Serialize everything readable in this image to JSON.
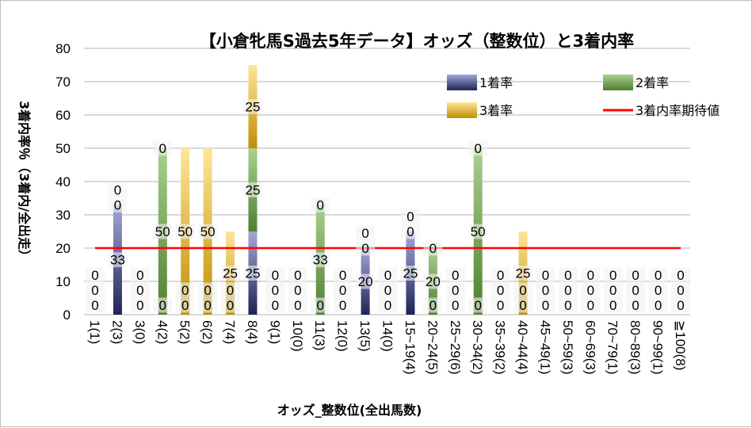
{
  "chart_data": {
    "type": "bar",
    "stacked": true,
    "title": "【小倉牝馬S過去5年データ】オッズ（整数位）と3着内率",
    "xlabel": "オッズ_整数位(全出馬数)",
    "ylabel": "3着内率％（3着内/全出走）",
    "ylim": [
      0,
      80
    ],
    "yticks": [
      0,
      10,
      20,
      30,
      40,
      50,
      60,
      70,
      80
    ],
    "grid": true,
    "legend_position": "top-right",
    "categories": [
      "1(1)",
      "2(3)",
      "3(0)",
      "4(2)",
      "5(2)",
      "6(2)",
      "7(4)",
      "8(4)",
      "9(1)",
      "10(0)",
      "11(3)",
      "12(0)",
      "13(5)",
      "14(0)",
      "15~19(4)",
      "20~24(5)",
      "25~29(6)",
      "30~34(2)",
      "35~39(2)",
      "40~44(4)",
      "45~49(1)",
      "50~59(3)",
      "60~69(3)",
      "70~79(1)",
      "80~89(3)",
      "90~99(1)",
      "≧100(8)"
    ],
    "series": [
      {
        "name": "1着率",
        "color_top": "#a3a8d8",
        "color_bottom": "#1e2456",
        "values": [
          0,
          33,
          0,
          0,
          0,
          0,
          0,
          25,
          0,
          0,
          0,
          0,
          20,
          0,
          25,
          0,
          0,
          0,
          0,
          0,
          0,
          0,
          0,
          0,
          0,
          0,
          0
        ]
      },
      {
        "name": "2着率",
        "color_top": "#a9d18e",
        "color_bottom": "#4f7f30",
        "values": [
          0,
          0,
          0,
          50,
          0,
          0,
          0,
          25,
          0,
          0,
          33,
          0,
          0,
          0,
          0,
          20,
          0,
          50,
          0,
          0,
          0,
          0,
          0,
          0,
          0,
          0,
          0
        ]
      },
      {
        "name": "3着率",
        "color_top": "#ffe699",
        "color_bottom": "#bf8f00",
        "values": [
          0,
          0,
          0,
          0,
          50,
          50,
          25,
          25,
          0,
          0,
          0,
          0,
          0,
          0,
          0,
          0,
          0,
          0,
          0,
          25,
          0,
          0,
          0,
          0,
          0,
          0,
          0
        ]
      }
    ],
    "reference_line": {
      "name": "3着内率期待値",
      "value": 20,
      "color": "#ff0000"
    }
  }
}
